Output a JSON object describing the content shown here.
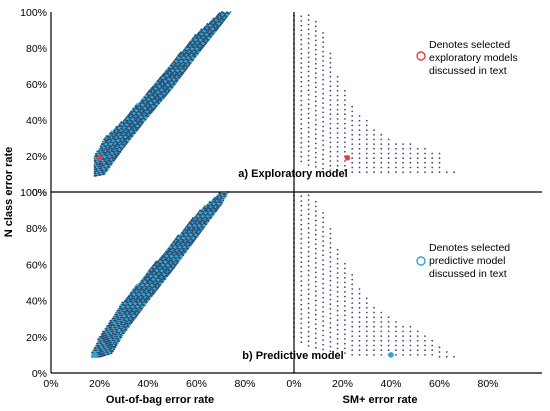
{
  "figure": {
    "y_axis_label": "N class error rate",
    "x_axis_labels": [
      "Out-of-bag error rate",
      "SM+ error rate"
    ],
    "y_ticks": [
      "0%",
      "20%",
      "40%",
      "60%",
      "80%",
      "100%"
    ],
    "x_ticks": [
      "0%",
      "20%",
      "40%",
      "60%",
      "80%"
    ],
    "colors": {
      "point": "#1f4e79",
      "point_highlight": "#2aa9d0",
      "point_purple": "#5a3d7a",
      "exploratory_marker": "#e8413c",
      "predictive_marker": "#2aa9d0",
      "axis": "#000000"
    }
  },
  "chart_data": [
    {
      "type": "scatter",
      "panel": "a) Exploratory model",
      "xlabel": "Out-of-bag error rate",
      "ylabel": "N class error rate",
      "xlim": [
        0,
        100
      ],
      "ylim": [
        0,
        100
      ],
      "band": {
        "description_points": [
          {
            "x": 18,
            "y_low": 9,
            "y_high": 20
          },
          {
            "x": 22,
            "y_low": 10,
            "y_high": 30
          },
          {
            "x": 30,
            "y_low": 25,
            "y_high": 40
          },
          {
            "x": 40,
            "y_low": 42,
            "y_high": 56
          },
          {
            "x": 50,
            "y_low": 58,
            "y_high": 72
          },
          {
            "x": 60,
            "y_low": 76,
            "y_high": 88
          },
          {
            "x": 70,
            "y_low": 93,
            "y_high": 100
          },
          {
            "x": 74,
            "y_low": 100,
            "y_high": 100
          }
        ]
      },
      "selected": {
        "x": 20,
        "y": 19
      }
    },
    {
      "type": "scatter",
      "panel": "a) Exploratory model",
      "xlabel": "SM+ error rate",
      "ylabel": "N class error rate",
      "xlim": [
        0,
        100
      ],
      "ylim": [
        0,
        100
      ],
      "columns": [
        {
          "x": 0,
          "y_min": 20,
          "y_max": 100
        },
        {
          "x": 3,
          "y_min": 17,
          "y_max": 100
        },
        {
          "x": 6,
          "y_min": 15,
          "y_max": 100
        },
        {
          "x": 9,
          "y_min": 14,
          "y_max": 96
        },
        {
          "x": 12,
          "y_min": 13,
          "y_max": 90
        },
        {
          "x": 15,
          "y_min": 12,
          "y_max": 79
        },
        {
          "x": 18,
          "y_min": 12,
          "y_max": 66
        },
        {
          "x": 21,
          "y_min": 12,
          "y_max": 58
        },
        {
          "x": 24,
          "y_min": 11,
          "y_max": 49
        },
        {
          "x": 27,
          "y_min": 11,
          "y_max": 44
        },
        {
          "x": 30,
          "y_min": 11,
          "y_max": 40
        },
        {
          "x": 33,
          "y_min": 11,
          "y_max": 36
        },
        {
          "x": 36,
          "y_min": 11,
          "y_max": 34
        },
        {
          "x": 39,
          "y_min": 11,
          "y_max": 31
        },
        {
          "x": 42,
          "y_min": 11,
          "y_max": 29
        },
        {
          "x": 45,
          "y_min": 11,
          "y_max": 27
        },
        {
          "x": 48,
          "y_min": 11,
          "y_max": 27
        },
        {
          "x": 51,
          "y_min": 11,
          "y_max": 26
        },
        {
          "x": 54,
          "y_min": 11,
          "y_max": 25
        },
        {
          "x": 57,
          "y_min": 11,
          "y_max": 24
        },
        {
          "x": 60,
          "y_min": 11,
          "y_max": 22
        },
        {
          "x": 63,
          "y_min": 11,
          "y_max": 12
        },
        {
          "x": 66,
          "y_min": 11,
          "y_max": 12
        }
      ],
      "selected": {
        "x": 22,
        "y": 19
      },
      "legend": "Denotes selected exploratory models discussed in text"
    },
    {
      "type": "scatter",
      "panel": "b) Predictive model",
      "xlabel": "Out-of-bag error rate",
      "ylabel": "N class error rate",
      "xlim": [
        0,
        100
      ],
      "ylim": [
        0,
        100
      ],
      "band": {
        "description_points": [
          {
            "x": 17,
            "y_low": 9,
            "y_high": 12
          },
          {
            "x": 20,
            "y_low": 9,
            "y_high": 20
          },
          {
            "x": 25,
            "y_low": 11,
            "y_high": 30
          },
          {
            "x": 30,
            "y_low": 22,
            "y_high": 40
          },
          {
            "x": 40,
            "y_low": 40,
            "y_high": 56
          },
          {
            "x": 50,
            "y_low": 57,
            "y_high": 72
          },
          {
            "x": 60,
            "y_low": 75,
            "y_high": 88
          },
          {
            "x": 70,
            "y_low": 93,
            "y_high": 100
          },
          {
            "x": 73,
            "y_low": 100,
            "y_high": 100
          }
        ]
      },
      "selected": {
        "x": 18,
        "y": 10
      }
    },
    {
      "type": "scatter",
      "panel": "b) Predictive model",
      "xlabel": "SM+ error rate",
      "ylabel": "N class error rate",
      "xlim": [
        0,
        100
      ],
      "ylim": [
        0,
        100
      ],
      "columns": [
        {
          "x": 0,
          "y_min": 20,
          "y_max": 100
        },
        {
          "x": 3,
          "y_min": 17,
          "y_max": 100
        },
        {
          "x": 6,
          "y_min": 15,
          "y_max": 100
        },
        {
          "x": 9,
          "y_min": 14,
          "y_max": 96
        },
        {
          "x": 12,
          "y_min": 13,
          "y_max": 90
        },
        {
          "x": 15,
          "y_min": 12,
          "y_max": 80
        },
        {
          "x": 18,
          "y_min": 11,
          "y_max": 70
        },
        {
          "x": 21,
          "y_min": 11,
          "y_max": 62
        },
        {
          "x": 24,
          "y_min": 10,
          "y_max": 55
        },
        {
          "x": 27,
          "y_min": 10,
          "y_max": 48
        },
        {
          "x": 30,
          "y_min": 10,
          "y_max": 42
        },
        {
          "x": 33,
          "y_min": 10,
          "y_max": 38
        },
        {
          "x": 36,
          "y_min": 10,
          "y_max": 35
        },
        {
          "x": 39,
          "y_min": 10,
          "y_max": 32
        },
        {
          "x": 42,
          "y_min": 10,
          "y_max": 30
        },
        {
          "x": 45,
          "y_min": 10,
          "y_max": 28
        },
        {
          "x": 48,
          "y_min": 10,
          "y_max": 26
        },
        {
          "x": 51,
          "y_min": 10,
          "y_max": 25
        },
        {
          "x": 54,
          "y_min": 10,
          "y_max": 22
        },
        {
          "x": 57,
          "y_min": 10,
          "y_max": 18
        },
        {
          "x": 60,
          "y_min": 9,
          "y_max": 15
        },
        {
          "x": 63,
          "y_min": 9,
          "y_max": 12
        },
        {
          "x": 66,
          "y_min": 9,
          "y_max": 10
        }
      ],
      "selected": {
        "x": 40,
        "y": 10
      },
      "legend": "Denotes selected predictive model discussed in text"
    }
  ]
}
